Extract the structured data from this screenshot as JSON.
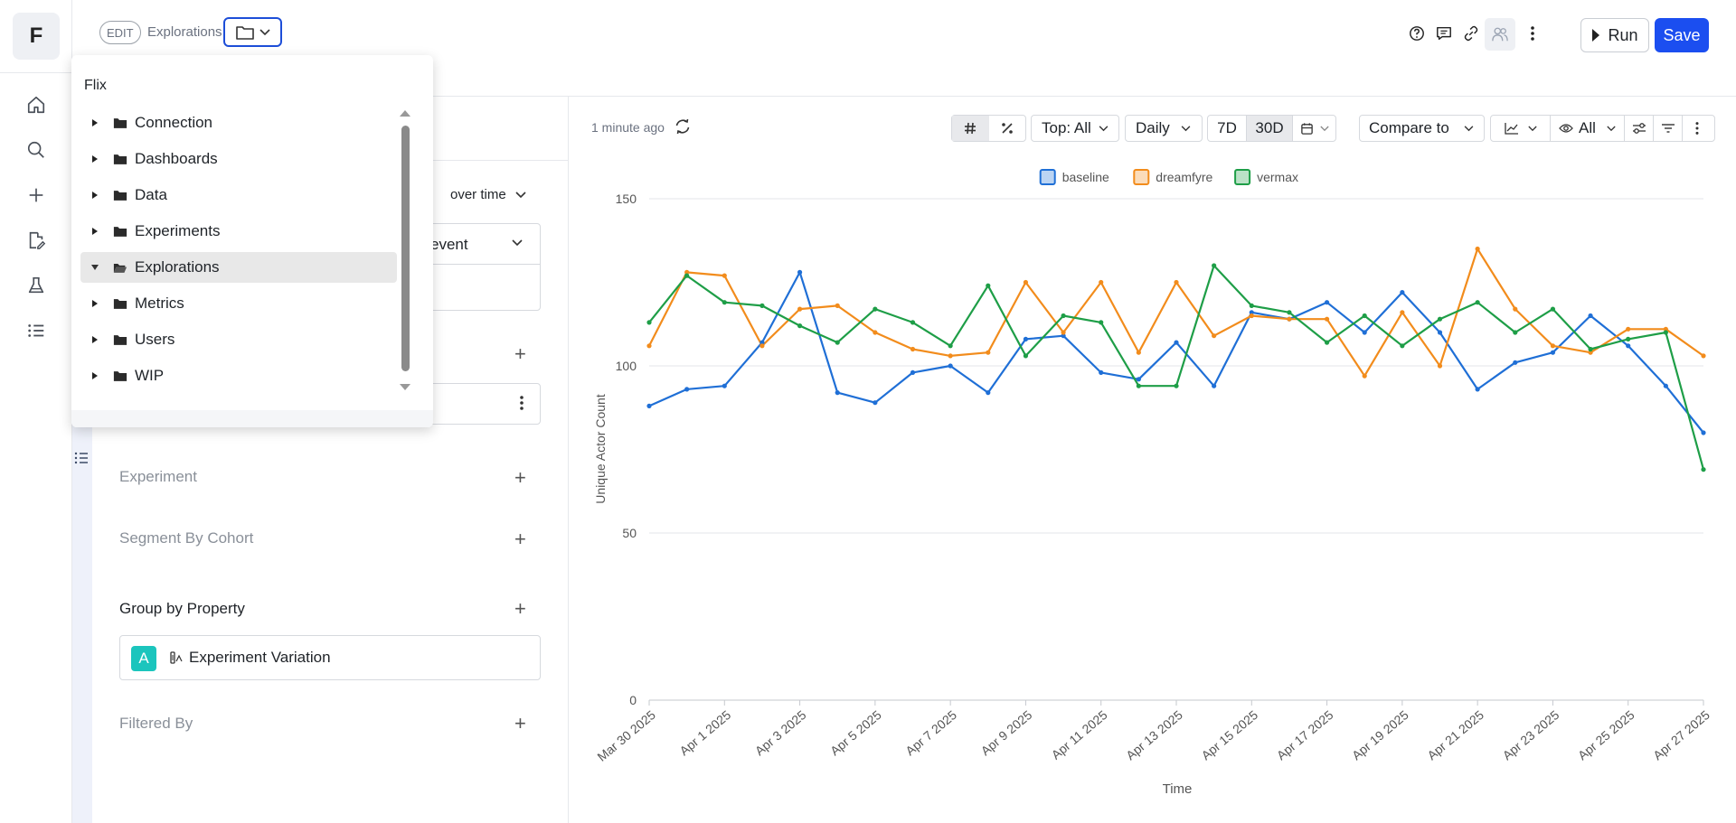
{
  "app": {
    "logo_letter": "F",
    "nav_icons": [
      "home-icon",
      "search-icon",
      "plus-icon",
      "edit-document-icon",
      "flask-icon",
      "list-icon"
    ]
  },
  "header": {
    "edit_badge": "EDIT",
    "breadcrumb": "Explorations",
    "run_label": "Run",
    "save_label": "Save",
    "action_icons": [
      "help-icon",
      "comment-icon",
      "link-icon",
      "users-icon",
      "more-vertical-icon"
    ]
  },
  "folder_dropdown": {
    "root": "Flix",
    "items": [
      {
        "label": "Connection",
        "expanded": false,
        "selected": false
      },
      {
        "label": "Dashboards",
        "expanded": false,
        "selected": false
      },
      {
        "label": "Data",
        "expanded": false,
        "selected": false
      },
      {
        "label": "Experiments",
        "expanded": false,
        "selected": false
      },
      {
        "label": "Explorations",
        "expanded": true,
        "selected": true
      },
      {
        "label": "Metrics",
        "expanded": false,
        "selected": false
      },
      {
        "label": "Users",
        "expanded": false,
        "selected": false
      },
      {
        "label": "WIP",
        "expanded": false,
        "selected": false
      }
    ]
  },
  "config_panel": {
    "over_time": "over time",
    "event_text": "event",
    "experiment_label": "Experiment",
    "segment_label": "Segment By Cohort",
    "group_by_label": "Group by Property",
    "group_item_badge": "A",
    "group_item_label": "Experiment Variation",
    "filtered_label": "Filtered By"
  },
  "chart_toolbar": {
    "updated": "1 minute ago",
    "top": "Top: All",
    "interval": "Daily",
    "range_7d": "7D",
    "range_30d": "30D",
    "compare": "Compare to",
    "visibility": "All"
  },
  "chart_data": {
    "type": "line",
    "xlabel": "Time",
    "ylabel": "Unique Actor Count",
    "ylim": [
      0,
      150
    ],
    "yticks": [
      0,
      50,
      100,
      150
    ],
    "x_ticks": [
      "Mar 30 2025",
      "Apr 1 2025",
      "Apr 3 2025",
      "Apr 5 2025",
      "Apr 7 2025",
      "Apr 9 2025",
      "Apr 11 2025",
      "Apr 13 2025",
      "Apr 15 2025",
      "Apr 17 2025",
      "Apr 19 2025",
      "Apr 21 2025",
      "Apr 23 2025",
      "Apr 25 2025",
      "Apr 27 2025"
    ],
    "x": [
      "Mar 30 2025",
      "Mar 31 2025",
      "Apr 1 2025",
      "Apr 2 2025",
      "Apr 3 2025",
      "Apr 4 2025",
      "Apr 5 2025",
      "Apr 6 2025",
      "Apr 7 2025",
      "Apr 8 2025",
      "Apr 9 2025",
      "Apr 10 2025",
      "Apr 11 2025",
      "Apr 12 2025",
      "Apr 13 2025",
      "Apr 14 2025",
      "Apr 15 2025",
      "Apr 16 2025",
      "Apr 17 2025",
      "Apr 18 2025",
      "Apr 19 2025",
      "Apr 20 2025",
      "Apr 21 2025",
      "Apr 22 2025",
      "Apr 23 2025",
      "Apr 24 2025",
      "Apr 25 2025",
      "Apr 26 2025",
      "Apr 27 2025"
    ],
    "legend": "top-center",
    "grid": true,
    "series": [
      {
        "name": "baseline",
        "color": "#1f6fd6",
        "values": [
          88,
          93,
          94,
          107,
          128,
          92,
          89,
          98,
          100,
          92,
          108,
          109,
          98,
          96,
          107,
          94,
          116,
          114,
          119,
          110,
          122,
          110,
          93,
          101,
          104,
          115,
          106,
          94,
          80
        ]
      },
      {
        "name": "dreamfyre",
        "color": "#f28c1c",
        "values": [
          106,
          128,
          127,
          106,
          117,
          118,
          110,
          105,
          103,
          104,
          125,
          110,
          125,
          104,
          125,
          109,
          115,
          114,
          114,
          97,
          116,
          100,
          135,
          117,
          106,
          104,
          111,
          111,
          103
        ]
      },
      {
        "name": "vermax",
        "color": "#1e9e47",
        "values": [
          113,
          127,
          119,
          118,
          112,
          107,
          117,
          113,
          106,
          124,
          103,
          115,
          113,
          94,
          94,
          130,
          118,
          116,
          107,
          115,
          106,
          114,
          119,
          110,
          117,
          105,
          108,
          110,
          69
        ]
      }
    ]
  }
}
